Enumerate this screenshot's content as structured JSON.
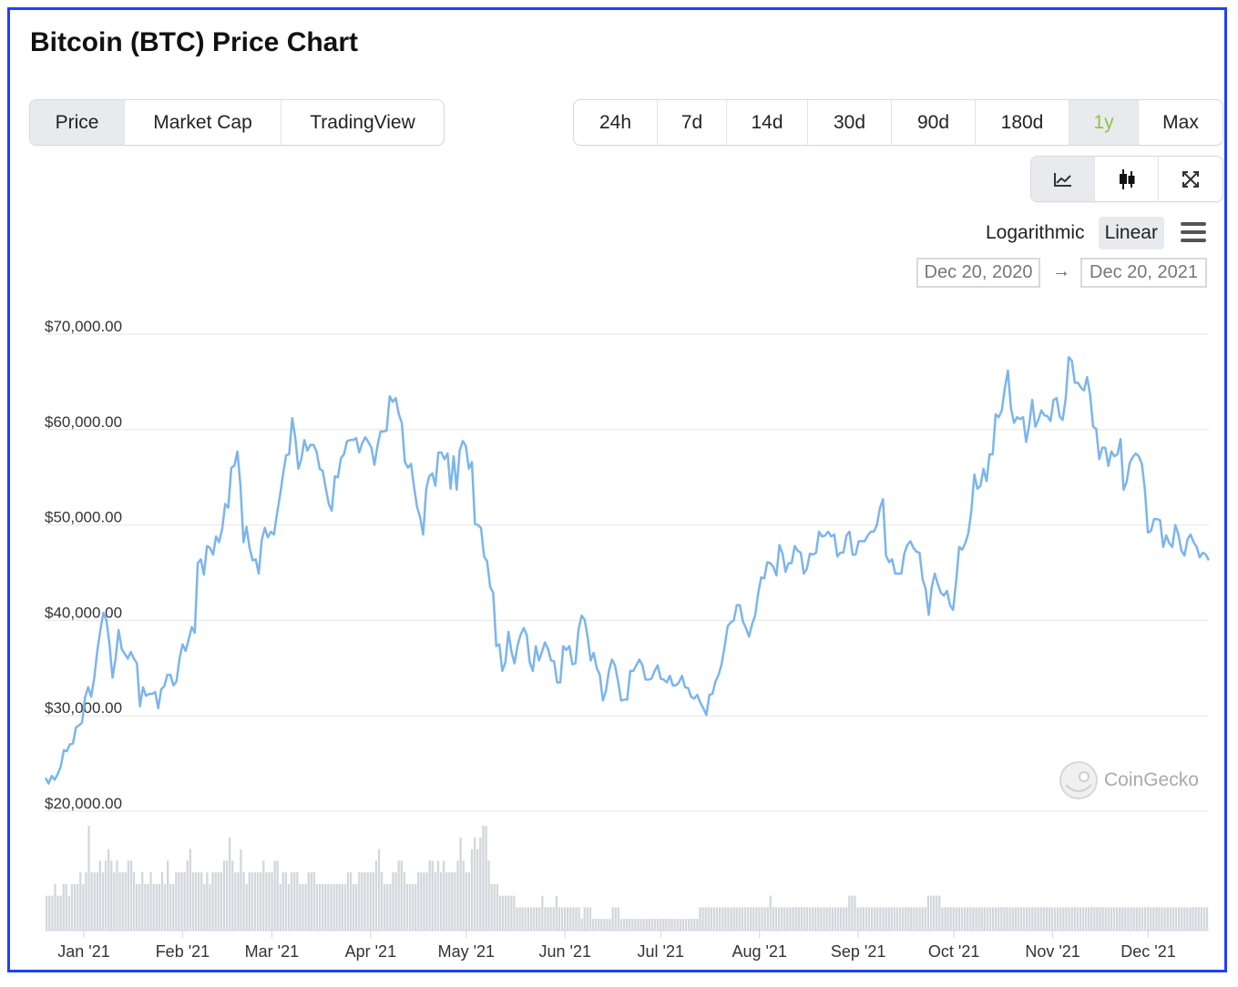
{
  "title": "Bitcoin (BTC) Price Chart",
  "view_tabs": [
    "Price",
    "Market Cap",
    "TradingView"
  ],
  "range_tabs": [
    "24h",
    "7d",
    "14d",
    "30d",
    "90d",
    "180d",
    "1y",
    "Max"
  ],
  "active_range": "1y",
  "chart_type_icons": [
    "line-chart-icon",
    "candlestick-icon",
    "fullscreen-icon"
  ],
  "scale_options": [
    "Logarithmic",
    "Linear"
  ],
  "active_scale": "Linear",
  "date_from": "Dec 20, 2020",
  "date_to": "Dec 20, 2021",
  "date_arrow": "→",
  "watermark": "CoinGecko",
  "colors": {
    "line": "#7cb5ec",
    "volume": "#d4d6db",
    "active_range": "#8dc63f"
  },
  "chart_data": {
    "type": "line",
    "title": "Bitcoin (BTC) Price Chart",
    "ylim": [
      20000,
      70000
    ],
    "ytick_labels": [
      "$70,000.00",
      "$60,000.00",
      "$50,000.00",
      "$40,000.00",
      "$30,000.00",
      "$20,000.00"
    ],
    "ytick_values": [
      70000,
      60000,
      50000,
      40000,
      30000,
      20000
    ],
    "xtick_labels": [
      "Jan '21",
      "Feb '21",
      "Mar '21",
      "Apr '21",
      "May '21",
      "Jun '21",
      "Jul '21",
      "Aug '21",
      "Sep '21",
      "Oct '21",
      "Nov '21",
      "Dec '21"
    ],
    "x_start": "Dec 20, 2020",
    "x_end": "Dec 20, 2021",
    "grid": true,
    "series": [
      {
        "values": [
          23500,
          22900,
          23700,
          23300,
          23900,
          24700,
          26400,
          26300,
          27000,
          27100,
          28800,
          29000,
          29300,
          32000,
          33000,
          32000,
          34000,
          36800,
          39000,
          40800,
          40000,
          37500,
          34000,
          36000,
          39000,
          37000,
          36500,
          36000,
          36700,
          36000,
          35500,
          31000,
          33000,
          32100,
          32300,
          32300,
          32500,
          30800,
          32800,
          33100,
          34300,
          34300,
          33200,
          33600,
          36000,
          37500,
          36800,
          38000,
          39300,
          38700,
          46000,
          46400,
          44800,
          47800,
          47600,
          46900,
          48800,
          48200,
          49600,
          52200,
          51800,
          56000,
          56200,
          57700,
          54200,
          48200,
          49800,
          47600,
          46300,
          46400,
          44900,
          48400,
          49700,
          48700,
          49300,
          49000,
          51200,
          53100,
          55300,
          57300,
          57400,
          61200,
          59200,
          55900,
          56900,
          58900,
          57800,
          58400,
          58400,
          57700,
          55900,
          55700,
          53900,
          52200,
          51500,
          55100,
          55000,
          57000,
          57400,
          58800,
          58900,
          58900,
          59100,
          57600,
          58600,
          59200,
          58700,
          58100,
          56300,
          58300,
          59800,
          59800,
          59900,
          63500,
          62900,
          63300,
          61600,
          60700,
          56600,
          56000,
          56400,
          54000,
          51900,
          50800,
          49000,
          53800,
          55100,
          55400,
          54100,
          57600,
          57600,
          56900,
          57500,
          53800,
          57200,
          53700,
          57800,
          58800,
          58300,
          55900,
          56600,
          50100,
          50000,
          49700,
          46700,
          46200,
          43500,
          42900,
          37300,
          37500,
          34700,
          35600,
          38800,
          36700,
          35500,
          37400,
          38500,
          39200,
          38500,
          35600,
          34700,
          37300,
          35800,
          36700,
          37700,
          37000,
          35800,
          35700,
          33500,
          33500,
          37300,
          36900,
          37300,
          35400,
          35500,
          39000,
          40500,
          40100,
          38300,
          35800,
          36600,
          35000,
          34300,
          31600,
          32600,
          34700,
          35900,
          35300,
          33600,
          31600,
          31700,
          31700,
          34700,
          34700,
          35300,
          35900,
          35300,
          33800,
          33800,
          33900,
          34700,
          35300,
          33900,
          33800,
          33500,
          34200,
          33200,
          33200,
          33500,
          34200,
          33000,
          32900,
          32000,
          31800,
          32200,
          31400,
          30800,
          30100,
          32200,
          32300,
          33600,
          34300,
          35400,
          37300,
          39400,
          39800,
          40000,
          41600,
          41600,
          39900,
          39200,
          38300,
          39600,
          40500,
          42800,
          44500,
          44400,
          46100,
          46000,
          45600,
          44700,
          47900,
          47000,
          45100,
          46000,
          46000,
          47800,
          47300,
          47100,
          44900,
          45400,
          47000,
          46900,
          47100,
          49300,
          48800,
          48900,
          49300,
          48800,
          49000,
          46700,
          47100,
          47100,
          48900,
          49300,
          46900,
          46900,
          48300,
          48300,
          48300,
          48900,
          49300,
          49300,
          50000,
          51800,
          52700,
          46800,
          46100,
          46400,
          44900,
          44900,
          44900,
          47000,
          47900,
          48300,
          47600,
          47200,
          47100,
          44300,
          43300,
          40600,
          43500,
          44900,
          43800,
          42900,
          42600,
          43100,
          41600,
          41100,
          44000,
          47700,
          47400,
          48100,
          49100,
          51500,
          55300,
          53800,
          54100,
          55900,
          54600,
          57400,
          57400,
          61600,
          61300,
          62000,
          64300,
          66200,
          62300,
          60700,
          61300,
          61100,
          61300,
          58700,
          60500,
          63100,
          60300,
          61000,
          62000,
          61500,
          61400,
          60900,
          63100,
          63300,
          61400,
          61000,
          63300,
          67600,
          67200,
          64900,
          64900,
          64400,
          64100,
          65500,
          63700,
          60300,
          60100,
          56900,
          58100,
          58100,
          56200,
          57700,
          57200,
          57400,
          59000,
          53700,
          54500,
          56500,
          57100,
          57500,
          57200,
          56400,
          53700,
          49200,
          49400,
          50600,
          50600,
          50500,
          47700,
          48900,
          48100,
          47700,
          50000,
          49000,
          47300,
          46800,
          48500,
          49000,
          48200,
          47700,
          46600,
          47100,
          46900,
          46300
        ]
      }
    ],
    "volume_values": [
      3,
      3,
      3,
      4,
      3,
      3,
      4,
      4,
      3,
      4,
      4,
      4,
      5,
      4,
      5,
      9,
      5,
      5,
      5,
      6,
      5,
      6,
      7,
      6,
      5,
      6,
      5,
      5,
      5,
      6,
      6,
      5,
      4,
      4,
      5,
      4,
      4,
      5,
      4,
      4,
      4,
      5,
      4,
      6,
      4,
      4,
      5,
      5,
      5,
      5,
      6,
      7,
      5,
      5,
      5,
      5,
      4,
      5,
      4,
      5,
      5,
      5,
      5,
      6,
      6,
      8,
      6,
      5,
      5,
      7,
      5,
      4,
      5,
      5,
      5,
      5,
      5,
      6,
      5,
      5,
      5,
      6,
      6,
      4,
      5,
      5,
      4,
      5,
      5,
      5,
      4,
      4,
      4,
      5,
      5,
      5,
      4,
      4,
      4,
      4,
      4,
      4,
      4,
      4,
      4,
      4,
      4,
      5,
      5,
      4,
      4,
      5,
      5,
      5,
      5,
      5,
      5,
      6,
      7,
      5,
      4,
      4,
      4,
      5,
      5,
      6,
      6,
      5,
      4,
      4,
      4,
      4,
      5,
      5,
      5,
      5,
      6,
      6,
      5,
      6,
      5,
      6,
      5,
      5,
      5,
      5,
      6,
      8,
      6,
      5,
      5,
      7,
      8,
      7,
      8,
      9,
      9,
      6,
      4,
      4,
      4,
      3,
      3,
      3,
      3,
      3,
      3,
      2,
      2,
      2,
      2,
      2,
      2,
      2,
      2,
      2,
      3,
      2,
      2,
      2,
      2,
      3,
      2,
      2,
      2,
      2,
      2,
      2,
      2,
      2,
      1,
      2,
      2,
      2,
      1,
      1,
      1,
      1,
      1,
      1,
      1,
      2,
      2,
      2,
      1,
      1,
      1,
      1,
      1,
      1,
      1,
      1,
      1,
      1,
      1,
      1,
      1,
      1,
      1,
      1,
      1,
      1,
      1,
      1,
      1,
      1,
      1,
      1,
      1,
      1,
      1,
      1,
      2,
      2,
      2,
      2,
      2,
      2,
      2,
      2,
      2,
      2,
      2,
      2,
      2,
      2,
      2,
      2,
      2,
      2,
      2,
      2,
      2,
      2,
      2,
      2,
      2,
      3,
      2,
      2,
      2,
      2,
      2,
      2,
      2,
      2,
      2,
      2,
      2,
      2,
      2,
      2,
      2,
      2,
      2,
      2,
      2,
      2,
      2,
      2,
      2,
      2,
      2,
      2,
      2,
      3,
      3,
      3,
      2,
      2,
      2,
      2,
      2,
      2,
      2,
      2,
      2,
      2,
      2,
      2,
      2,
      2,
      2,
      2,
      2,
      2,
      2,
      2,
      2,
      2,
      2,
      2,
      2,
      3,
      3,
      3,
      3,
      3,
      2,
      2,
      2,
      2,
      2,
      2,
      2,
      2,
      2,
      2,
      2,
      2,
      2,
      2,
      2,
      2,
      2,
      2,
      2,
      2,
      2,
      2,
      2,
      2,
      2,
      2,
      2,
      2,
      2,
      2,
      2,
      2,
      2,
      2,
      2,
      2,
      2,
      2,
      2,
      2,
      2,
      2,
      2,
      2,
      2,
      2,
      2,
      2,
      2,
      2,
      2,
      2,
      2,
      2,
      2,
      2,
      2,
      2,
      2,
      2,
      2,
      2,
      2,
      2,
      2,
      2,
      2,
      2,
      2,
      2,
      2,
      2,
      2,
      2,
      2,
      2,
      2,
      2,
      2,
      2,
      2,
      2,
      2,
      2,
      2,
      2,
      2,
      2,
      2,
      2,
      2,
      2,
      2,
      2,
      2
    ]
  }
}
